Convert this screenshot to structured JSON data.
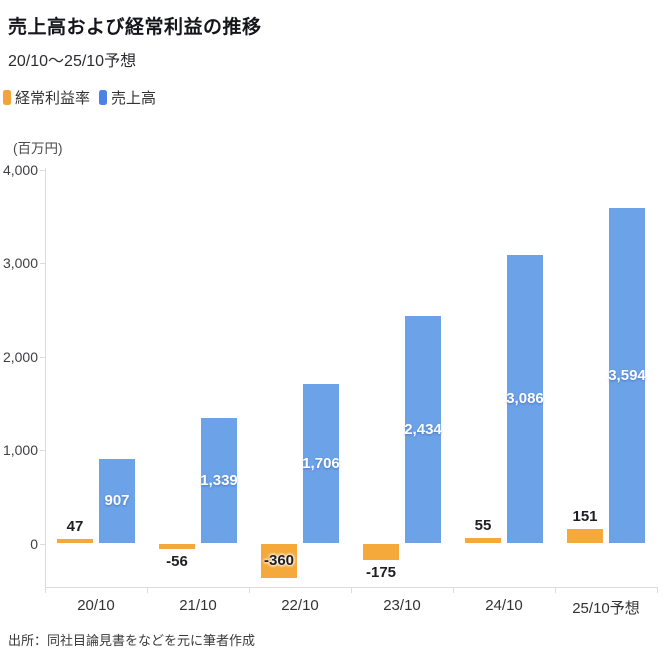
{
  "header": {
    "title": "売上高および経常利益の推移",
    "subtitle": "20/10〜25/10予想"
  },
  "legend": [
    {
      "label": "経常利益率",
      "color": "#F2A33C",
      "icon": "legend-swatch-orange"
    },
    {
      "label": "売上高",
      "color": "#4C82E8",
      "icon": "legend-swatch-blue"
    }
  ],
  "source": "出所：同社目論見書をなどを元に筆者作成",
  "chart_data": {
    "type": "bar",
    "title": "売上高および経常利益の推移",
    "subtitle": "20/10〜25/10予想",
    "unit": "(百万円)",
    "categories": [
      "20/10",
      "21/10",
      "22/10",
      "23/10",
      "24/10",
      "25/10予想"
    ],
    "series": [
      {
        "name": "経常利益率",
        "color": "#F5A93B",
        "values": [
          47,
          -56,
          -360,
          -175,
          55,
          151
        ],
        "labels": [
          "47",
          "-56",
          "-360",
          "-175",
          "55",
          "151"
        ]
      },
      {
        "name": "売上高",
        "color": "#6CA2E8",
        "values": [
          907,
          1339,
          1706,
          2434,
          3086,
          3594
        ],
        "labels": [
          "907",
          "1,339",
          "1,706",
          "2,434",
          "3,086",
          "3,594"
        ]
      }
    ],
    "ylabel": "(百万円)",
    "y_ticks": [
      4000,
      3000,
      2000,
      1000,
      0
    ],
    "y_tick_labels": [
      "4,000",
      "3,000",
      "2,000",
      "1,000",
      "0"
    ],
    "ylim": [
      -505,
      4000
    ],
    "grid": false,
    "legend_position": "top-left"
  }
}
